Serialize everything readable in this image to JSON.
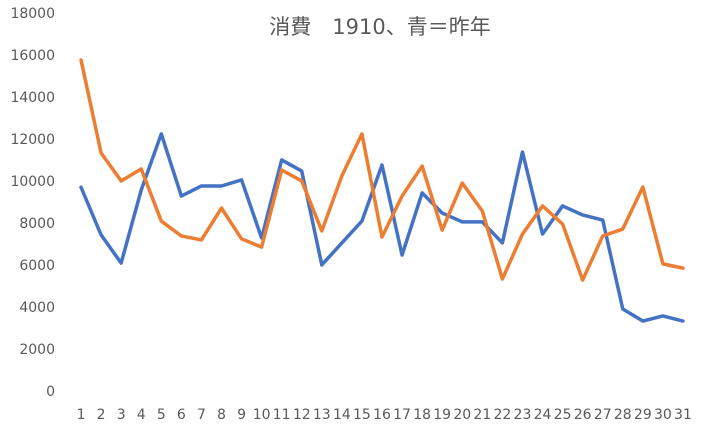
{
  "chart_data": {
    "type": "line",
    "title": "消費　1910、青＝昨年",
    "categories": [
      1,
      2,
      3,
      4,
      5,
      6,
      7,
      8,
      9,
      10,
      11,
      12,
      13,
      14,
      15,
      16,
      17,
      18,
      19,
      20,
      21,
      22,
      23,
      24,
      25,
      26,
      27,
      28,
      29,
      30,
      31
    ],
    "series": [
      {
        "color": "#4472c4",
        "values": [
          9750,
          7480,
          6140,
          9620,
          12290,
          9330,
          9810,
          9810,
          10100,
          7330,
          11050,
          10520,
          6050,
          7100,
          8140,
          10810,
          6520,
          9480,
          8520,
          8100,
          8100,
          7100,
          11430,
          7520,
          8860,
          8430,
          8190,
          3950,
          3380,
          3620,
          3380
        ]
      },
      {
        "color": "#ed7d31",
        "values": [
          15810,
          11380,
          10050,
          10620,
          8140,
          7430,
          7240,
          8760,
          7290,
          6900,
          10570,
          10050,
          7670,
          10290,
          12290,
          7380,
          9330,
          10760,
          7710,
          9950,
          8620,
          5380,
          7520,
          8860,
          8000,
          5330,
          7430,
          7760,
          9760,
          6100,
          5900
        ]
      }
    ],
    "ylim": [
      0,
      18000
    ],
    "yticks": [
      0,
      2000,
      4000,
      6000,
      8000,
      10000,
      12000,
      14000,
      16000,
      18000
    ],
    "grid": false
  }
}
